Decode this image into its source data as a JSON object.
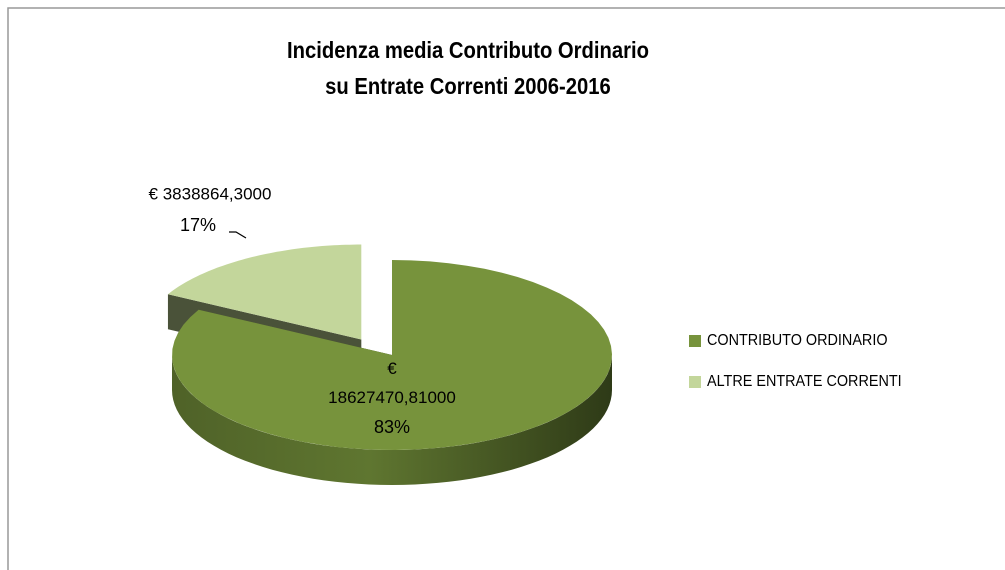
{
  "chart_data": {
    "type": "pie",
    "title": [
      "Incidenza media Contributo Ordinario",
      "su Entrate Correnti 2006-2016"
    ],
    "categories": [
      "CONTRIBUTO ORDINARIO",
      "ALTRE ENTRATE CORRENTI"
    ],
    "values": [
      18627470.81,
      3838864.3
    ],
    "value_labels": [
      "€ 18627470,81000",
      "€ 3838864,3000"
    ],
    "percentages": [
      83,
      17
    ],
    "percentage_labels": [
      "83%",
      "17%"
    ],
    "colors": [
      "#77933c",
      "#c3d69b"
    ],
    "exploded": [
      false,
      true
    ],
    "legend": "right"
  }
}
